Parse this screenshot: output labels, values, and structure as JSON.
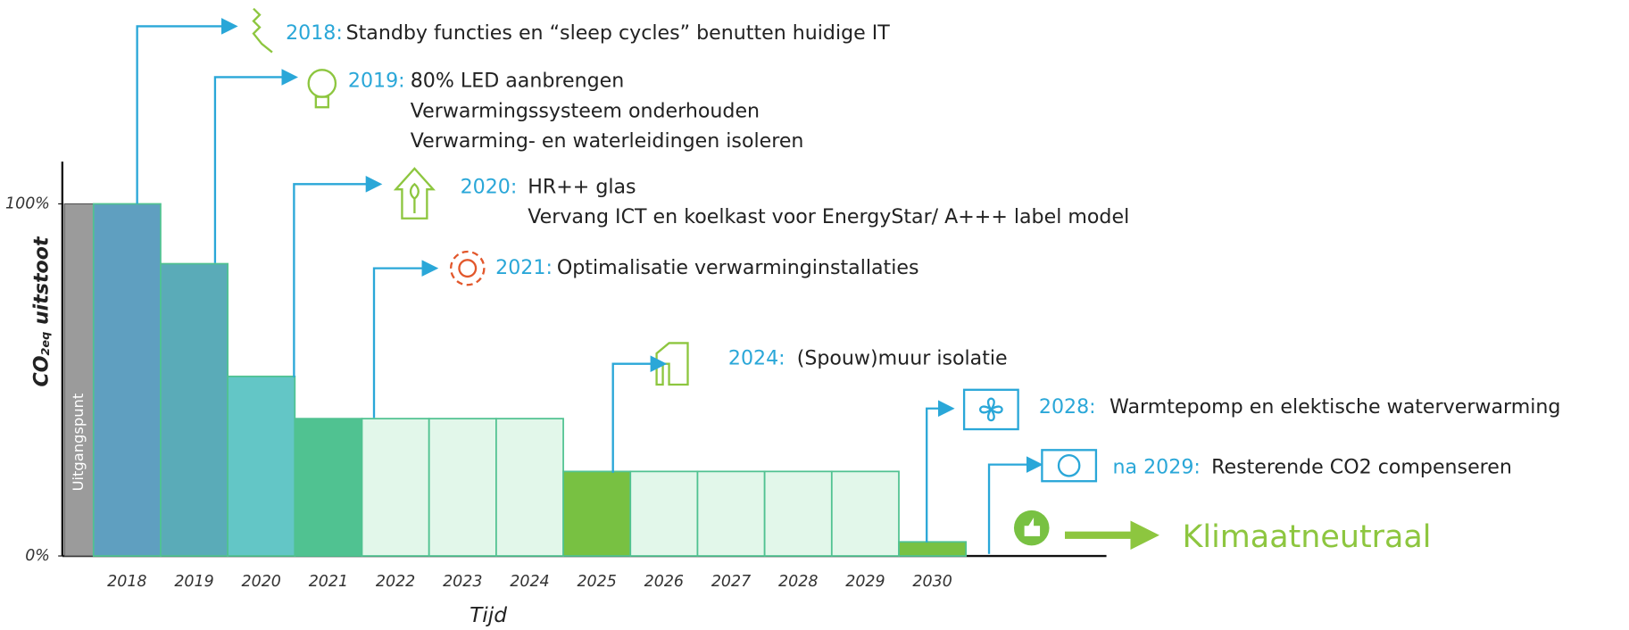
{
  "chart_data": {
    "type": "bar",
    "ylabel": {
      "main": "CO",
      "sub": "2eq",
      "rest": " uitstoot"
    },
    "xlabel": "Tijd",
    "ylim": [
      0,
      112
    ],
    "yticks": [
      {
        "value": 0,
        "label": "0%"
      },
      {
        "value": 100,
        "label": "100%"
      }
    ],
    "baseline": {
      "label": "Uitgangspunt",
      "value": 100,
      "color": "#9b9b9b"
    },
    "categories": [
      "2018",
      "2019",
      "2020",
      "2021",
      "2022",
      "2023",
      "2024",
      "2025",
      "2026",
      "2027",
      "2028",
      "2029",
      "2030"
    ],
    "values": [
      100,
      83,
      51,
      39,
      39,
      39,
      39,
      24,
      24,
      24,
      24,
      24,
      4
    ],
    "colors": [
      "#5f9fc0",
      "#5aabb8",
      "#63c6c6",
      "#50c291",
      "#e2f7ea",
      "#e2f7ea",
      "#e2f7ea",
      "#78c142",
      "#e2f7ea",
      "#e2f7ea",
      "#e2f7ea",
      "#e2f7ea",
      "#78c142"
    ],
    "outline": "#50c291",
    "annotations": [
      {
        "year": "2018:",
        "lines": [
          "Standby functies en “sleep cycles” benutten huidige IT"
        ]
      },
      {
        "year": "2019:",
        "lines": [
          "80% LED aanbrengen",
          "Verwarmingssysteem onderhouden",
          "Verwarming- en waterleidingen isoleren"
        ]
      },
      {
        "year": "2020:",
        "lines": [
          "HR++ glas",
          "Vervang ICT en koelkast voor EnergyStar/ A+++ label model"
        ]
      },
      {
        "year": "2021:",
        "lines": [
          "Optimalisatie verwarminginstallaties"
        ]
      },
      {
        "year": "2024:",
        "lines": [
          "(Spouw)muur isolatie"
        ]
      },
      {
        "year": "2028:",
        "lines": [
          "Warmtepomp en elektische waterverwarming"
        ]
      },
      {
        "year": "na 2029:",
        "lines": [
          "Resterende CO2 compenseren"
        ]
      }
    ],
    "final": "Klimaatneutraal"
  }
}
